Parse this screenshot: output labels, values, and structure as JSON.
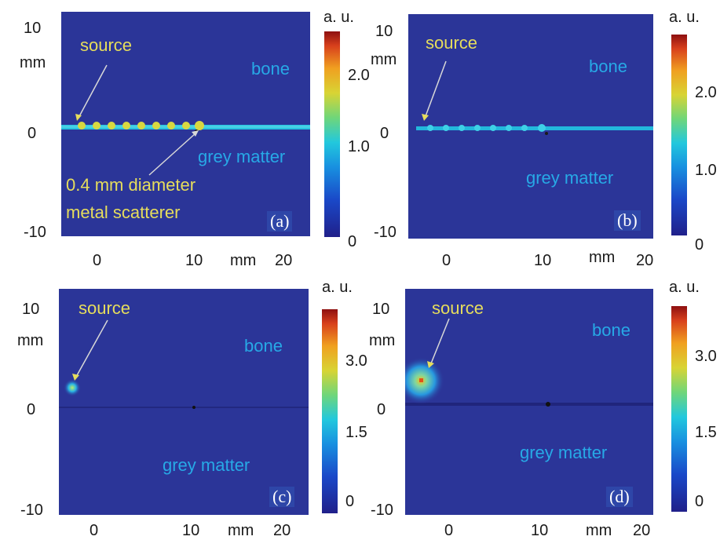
{
  "colorbar_title": "a. u.",
  "axis_unit": "mm",
  "y_ticks": [
    "10",
    "0",
    "-10"
  ],
  "x_ticks": [
    "0",
    "10",
    "20"
  ],
  "panels": [
    {
      "label": "(a)",
      "annotations": {
        "source": "source",
        "bone": "bone",
        "grey_matter": "grey matter",
        "scatterer_line1": "0.4 mm diameter",
        "scatterer_line2": "metal scatterer"
      },
      "colorbar_ticks": [
        "2.0",
        "1.0",
        "0"
      ]
    },
    {
      "label": "(b)",
      "annotations": {
        "source": "source",
        "bone": "bone",
        "grey_matter": "grey matter"
      },
      "colorbar_ticks": [
        "2.0",
        "1.0",
        "0"
      ]
    },
    {
      "label": "(c)",
      "annotations": {
        "source": "source",
        "bone": "bone",
        "grey_matter": "grey matter"
      },
      "colorbar_ticks": [
        "3.0",
        "1.5",
        "0"
      ]
    },
    {
      "label": "(d)",
      "annotations": {
        "source": "source",
        "bone": "bone",
        "grey_matter": "grey matter"
      },
      "colorbar_ticks": [
        "3.0",
        "1.5",
        "0"
      ]
    }
  ],
  "colors": {
    "background_field": "#2b3598",
    "annotation_yellow": "#e6dd5c",
    "annotation_cyan": "#27a9e6"
  }
}
